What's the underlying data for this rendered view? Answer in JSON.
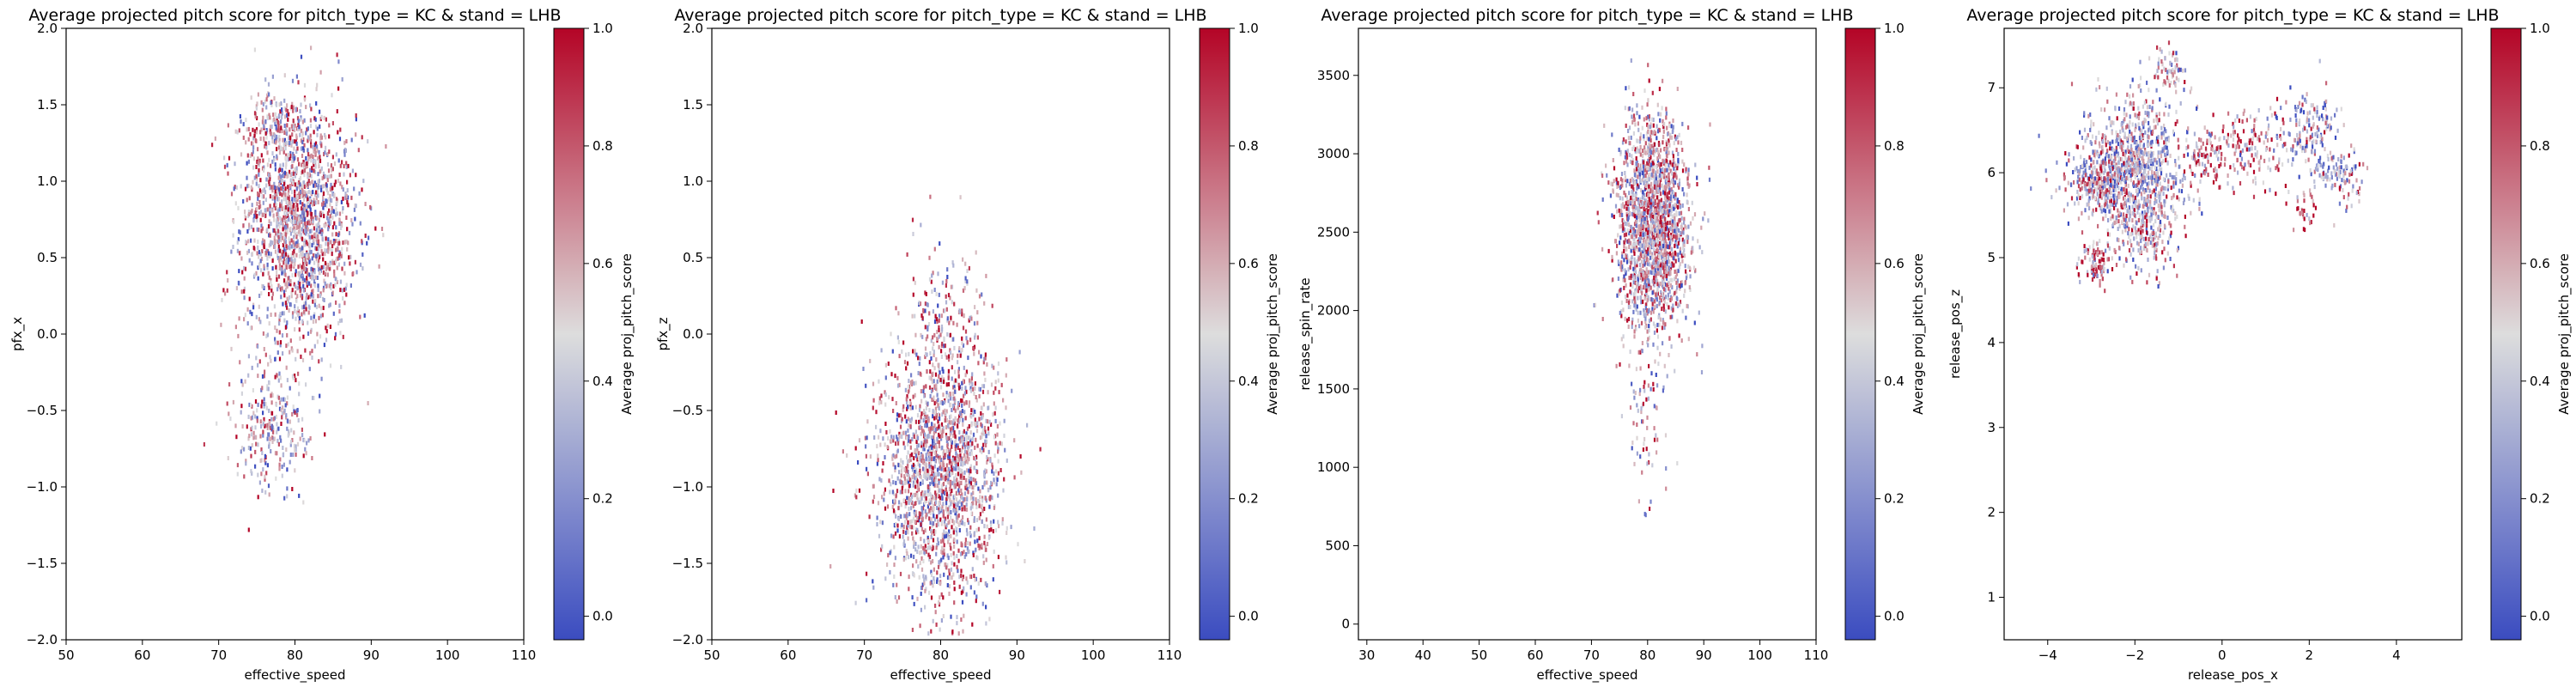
{
  "figure": {
    "background": "#ffffff"
  },
  "colormap": {
    "name": "coolwarm",
    "low": "#3b4cc0",
    "mid": "#dddddd",
    "high": "#b40426"
  },
  "chart_data": [
    {
      "type": "heatmap",
      "title": "Average projected pitch score for pitch_type = KC & stand = LHB",
      "xlabel": "effective_speed",
      "ylabel": "pfx_x",
      "colorbar_label": "Average proj_pitch_score",
      "xlim": [
        50,
        110
      ],
      "ylim": [
        -2.0,
        2.0
      ],
      "xticks": [
        50,
        60,
        70,
        80,
        90,
        100,
        110
      ],
      "xtick_labels": [
        "50",
        "60",
        "70",
        "80",
        "90",
        "100",
        "110"
      ],
      "yticks": [
        -2.0,
        -1.5,
        -1.0,
        -0.5,
        0.0,
        0.5,
        1.0,
        1.5,
        2.0
      ],
      "ytick_labels": [
        "−2.0",
        "−1.5",
        "−1.0",
        "−0.5",
        "0.0",
        "0.5",
        "1.0",
        "1.5",
        "2.0"
      ],
      "cbar_ticks": [
        0.0,
        0.2,
        0.4,
        0.6,
        0.8,
        1.0
      ],
      "cbar_tick_labels": [
        "0.0",
        "0.2",
        "0.4",
        "0.6",
        "0.8",
        "1.0"
      ],
      "clusters": [
        {
          "cx": 80.5,
          "cy": 0.72,
          "sx": 3.8,
          "sy": 0.38,
          "n": 1700,
          "mean": 0.55
        },
        {
          "cx": 77.0,
          "cy": -0.62,
          "sx": 2.6,
          "sy": 0.22,
          "n": 280,
          "mean": 0.5
        },
        {
          "cx": 77.5,
          "cy": 1.35,
          "sx": 2.5,
          "sy": 0.12,
          "n": 180,
          "mean": 0.55
        }
      ]
    },
    {
      "type": "heatmap",
      "title": "Average projected pitch score for pitch_type = KC & stand = LHB",
      "xlabel": "effective_speed",
      "ylabel": "pfx_z",
      "colorbar_label": "Average proj_pitch_score",
      "xlim": [
        50,
        110
      ],
      "ylim": [
        -2.0,
        2.0
      ],
      "xticks": [
        50,
        60,
        70,
        80,
        90,
        100,
        110
      ],
      "xtick_labels": [
        "50",
        "60",
        "70",
        "80",
        "90",
        "100",
        "110"
      ],
      "yticks": [
        -2.0,
        -1.5,
        -1.0,
        -0.5,
        0.0,
        0.5,
        1.0,
        1.5,
        2.0
      ],
      "ytick_labels": [
        "−2.0",
        "−1.5",
        "−1.0",
        "−0.5",
        "0.0",
        "0.5",
        "1.0",
        "1.5",
        "2.0"
      ],
      "cbar_ticks": [
        0.0,
        0.2,
        0.4,
        0.6,
        0.8,
        1.0
      ],
      "cbar_tick_labels": [
        "0.0",
        "0.2",
        "0.4",
        "0.6",
        "0.8",
        "1.0"
      ],
      "clusters": [
        {
          "cx": 80.0,
          "cy": -0.9,
          "sx": 4.0,
          "sy": 0.42,
          "n": 1900,
          "mean": 0.55
        },
        {
          "cx": 80.5,
          "cy": 0.1,
          "sx": 2.5,
          "sy": 0.25,
          "n": 150,
          "mean": 0.6
        }
      ]
    },
    {
      "type": "heatmap",
      "title": "Average projected pitch score for pitch_type = KC & stand = LHB",
      "xlabel": "effective_speed",
      "ylabel": "release_spin_rate",
      "colorbar_label": "Average proj_pitch_score",
      "xlim": [
        28.5,
        110
      ],
      "ylim": [
        -100,
        3800
      ],
      "xticks": [
        30,
        40,
        50,
        60,
        70,
        80,
        90,
        100,
        110
      ],
      "xtick_labels": [
        "30",
        "40",
        "50",
        "60",
        "70",
        "80",
        "90",
        "100",
        "110"
      ],
      "yticks": [
        0,
        500,
        1000,
        1500,
        2000,
        2500,
        3000,
        3500
      ],
      "ytick_labels": [
        "0",
        "500",
        "1000",
        "1500",
        "2000",
        "2500",
        "3000",
        "3500"
      ],
      "cbar_ticks": [
        0.0,
        0.2,
        0.4,
        0.6,
        0.8,
        1.0
      ],
      "cbar_tick_labels": [
        "0.0",
        "0.2",
        "0.4",
        "0.6",
        "0.8",
        "1.0"
      ],
      "clusters": [
        {
          "cx": 81.0,
          "cy": 2550,
          "sx": 3.2,
          "sy": 330,
          "n": 1900,
          "mean": 0.55
        },
        {
          "cx": 80.0,
          "cy": 1350,
          "sx": 2.0,
          "sy": 260,
          "n": 70,
          "mean": 0.5
        }
      ]
    },
    {
      "type": "heatmap",
      "title": "Average projected pitch score for pitch_type = KC & stand = LHB",
      "xlabel": "release_pos_x",
      "ylabel": "release_pos_z",
      "colorbar_label": "Average proj_pitch_score",
      "xlim": [
        -5.0,
        5.5
      ],
      "ylim": [
        0.5,
        7.7
      ],
      "xticks": [
        -4,
        -2,
        0,
        2,
        4
      ],
      "xtick_labels": [
        "−4",
        "−2",
        "0",
        "2",
        "4"
      ],
      "yticks": [
        1,
        2,
        3,
        4,
        5,
        6,
        7
      ],
      "ytick_labels": [
        "1",
        "2",
        "3",
        "4",
        "5",
        "6",
        "7"
      ],
      "cbar_ticks": [
        0.0,
        0.2,
        0.4,
        0.6,
        0.8,
        1.0
      ],
      "cbar_tick_labels": [
        "0.0",
        "0.2",
        "0.4",
        "0.6",
        "0.8",
        "1.0"
      ],
      "clusters": [
        {
          "cx": -2.0,
          "cy": 6.1,
          "sx": 0.6,
          "sy": 0.4,
          "n": 900,
          "mean": 0.45
        },
        {
          "cx": -2.8,
          "cy": 5.9,
          "sx": 0.35,
          "sy": 0.18,
          "n": 250,
          "mean": 0.5
        },
        {
          "cx": -1.8,
          "cy": 5.3,
          "sx": 0.35,
          "sy": 0.25,
          "n": 200,
          "mean": 0.55
        },
        {
          "cx": -2.9,
          "cy": 4.95,
          "sx": 0.2,
          "sy": 0.12,
          "n": 90,
          "mean": 0.75
        },
        {
          "cx": -1.2,
          "cy": 7.2,
          "sx": 0.18,
          "sy": 0.12,
          "n": 60,
          "mean": 0.6
        },
        {
          "cx": -0.3,
          "cy": 6.2,
          "sx": 0.25,
          "sy": 0.15,
          "n": 80,
          "mean": 0.7
        },
        {
          "cx": 0.7,
          "cy": 6.3,
          "sx": 0.5,
          "sy": 0.22,
          "n": 160,
          "mean": 0.7
        },
        {
          "cx": 2.0,
          "cy": 6.5,
          "sx": 0.35,
          "sy": 0.25,
          "n": 150,
          "mean": 0.35
        },
        {
          "cx": 2.4,
          "cy": 6.0,
          "sx": 0.3,
          "sy": 0.08,
          "n": 60,
          "mean": 0.3
        },
        {
          "cx": 2.9,
          "cy": 5.9,
          "sx": 0.18,
          "sy": 0.18,
          "n": 50,
          "mean": 0.5
        },
        {
          "cx": 1.9,
          "cy": 5.55,
          "sx": 0.12,
          "sy": 0.15,
          "n": 30,
          "mean": 0.8
        }
      ]
    }
  ]
}
